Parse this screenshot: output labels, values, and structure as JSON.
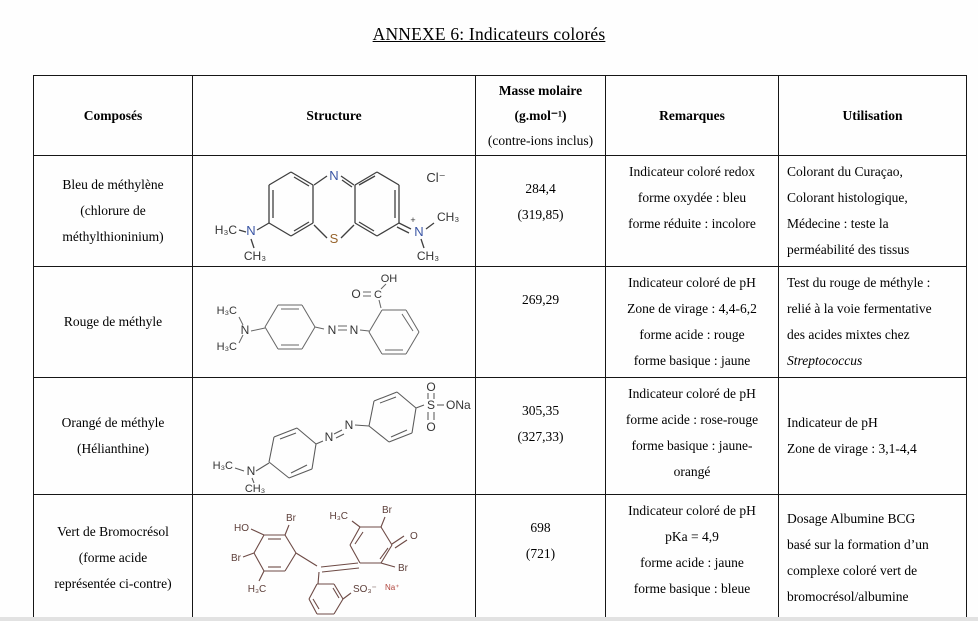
{
  "page": {
    "title": "ANNEXE 6: Indicateurs colorés"
  },
  "colors": {
    "border": "#161616",
    "n_atom": "#3a55a4",
    "s_atom": "#96632b",
    "bromocresol_ink": "#6d4a45",
    "na_counterion_ink": "#b0443c"
  },
  "table": {
    "headers": {
      "composes": "Composés",
      "structure": "Structure",
      "masse_l1": "Masse molaire",
      "masse_l2": "(g.mol⁻¹)",
      "masse_l3": "(contre-ions inclus)",
      "remarques": "Remarques",
      "utilisation": "Utilisation"
    },
    "rows": [
      {
        "compose": [
          "Bleu de méthylène",
          "(chlorure de",
          "méthylthioninium)"
        ],
        "masse": [
          "284,4",
          "(319,85)"
        ],
        "remarques": [
          "Indicateur coloré redox",
          "forme oxydée : bleu",
          "forme réduite : incolore"
        ],
        "utilisation": [
          "Colorant du Curaçao,",
          "Colorant histologique,",
          "Médecine : teste la",
          "perméabilité des tissus"
        ]
      },
      {
        "compose": [
          "Rouge de méthyle"
        ],
        "masse": [
          "269,29"
        ],
        "remarques": [
          "Indicateur coloré de pH",
          "Zone de virage : 4,4-6,2",
          "forme acide : rouge",
          "forme basique : jaune"
        ],
        "utilisation": [
          "Test du rouge de méthyle :",
          "relié à la voie fermentative",
          "des acides mixtes chez"
        ],
        "utilisation_italic": "Streptococcus"
      },
      {
        "compose": [
          "Orangé de méthyle",
          "(Hélianthine)"
        ],
        "masse": [
          "305,35",
          "(327,33)"
        ],
        "remarques": [
          "Indicateur coloré de pH",
          "forme acide : rose-rouge",
          "forme basique : jaune-",
          "orangé"
        ],
        "utilisation": [
          "Indicateur de pH",
          "Zone de virage : 3,1-4,4"
        ]
      },
      {
        "compose": [
          "Vert de Bromocrésol",
          "(forme acide",
          "représentée ci-contre)"
        ],
        "masse": [
          "698",
          "(721)"
        ],
        "remarques": [
          "Indicateur coloré de pH",
          "pKa = 4,9",
          "forme acide : jaune",
          "forme basique : bleue"
        ],
        "utilisation": [
          "Dosage Albumine BCG",
          "basé sur la formation d’un",
          "complexe coloré vert de",
          "bromocrésol/albumine"
        ]
      }
    ]
  },
  "structures": {
    "methylene_blue": {
      "N": "N",
      "S": "S",
      "Cl": "Cl⁻",
      "plus": "+",
      "H3C": "H₃C",
      "CH3": "CH₃"
    },
    "methyl_red": {
      "H3C": "H₃C",
      "N": "N",
      "C": "C",
      "O": "O",
      "OH": "OH"
    },
    "methyl_orange": {
      "H3C": "H₃C",
      "CH3": "CH₃",
      "N": "N",
      "S": "S",
      "O": "O",
      "ONa": "ONa"
    },
    "bromocresol": {
      "Br": "Br",
      "HO": "HO",
      "H3C": "H₃C",
      "O": "O",
      "SO3": "SO₃⁻",
      "Na": "Na⁺"
    }
  }
}
